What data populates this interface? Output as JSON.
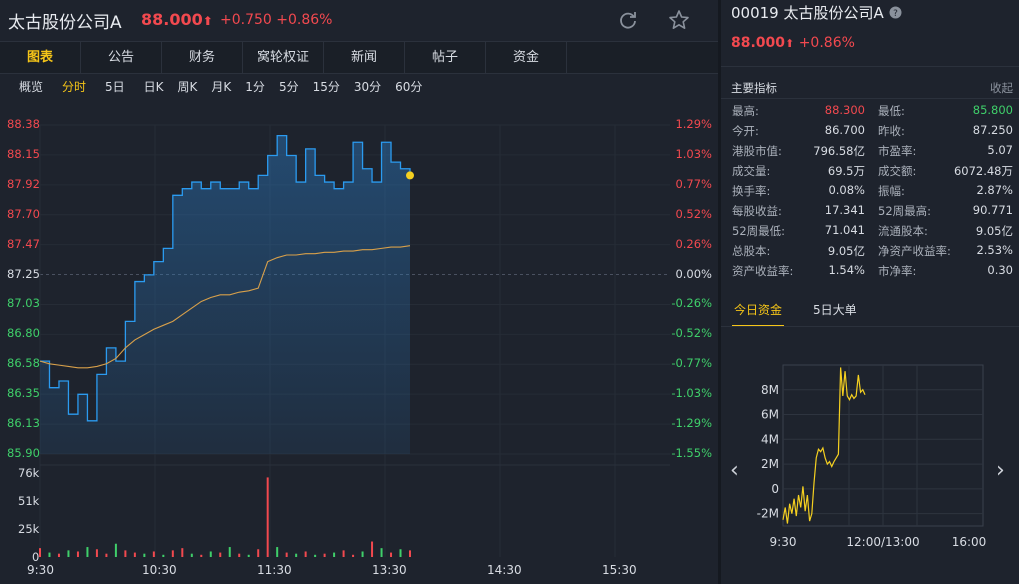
{
  "header": {
    "stock_name": "太古股份公司A",
    "price": "88.000",
    "up_arrow": "⬆",
    "change": "+0.750",
    "change_pct": "+0.86%",
    "refresh_icon": "refresh-icon",
    "star_icon": "star-icon"
  },
  "tabs": [
    {
      "label": "图表",
      "active": true
    },
    {
      "label": "公告"
    },
    {
      "label": "财务"
    },
    {
      "label": "窝轮权证"
    },
    {
      "label": "新闻"
    },
    {
      "label": "帖子"
    },
    {
      "label": "资金"
    }
  ],
  "periods": [
    "概览",
    "分时",
    "5日",
    "日K",
    "周K",
    "月K",
    "1分",
    "5分",
    "15分",
    "30分",
    "60分"
  ],
  "active_period": "分时",
  "colors": {
    "up": "#f2494f",
    "down": "#3fcf6a",
    "price_line": "#2b9bf0",
    "avg_line": "#d8a04a",
    "accent": "#f5c518"
  },
  "chart_data": {
    "type": "line",
    "price_ticks": [
      "88.38",
      "88.15",
      "87.92",
      "87.70",
      "87.47",
      "87.25",
      "87.03",
      "86.80",
      "86.58",
      "86.35",
      "86.13",
      "85.90"
    ],
    "pct_ticks": [
      "1.29%",
      "1.03%",
      "0.77%",
      "0.52%",
      "0.26%",
      "0.00%",
      "-0.26%",
      "-0.52%",
      "-0.77%",
      "-1.03%",
      "-1.29%",
      "-1.55%"
    ],
    "prev_close": 87.25,
    "ylim": [
      85.9,
      88.38
    ],
    "volume_ticks": [
      "76k",
      "51k",
      "25k",
      "0"
    ],
    "volume_max": 76000,
    "time_labels": [
      "9:30",
      "10:30",
      "11:30",
      "13:30",
      "14:30",
      "15:30"
    ],
    "price_series": {
      "name": "",
      "x": [
        "9:30",
        "9:35",
        "9:40",
        "9:45",
        "9:50",
        "9:55",
        "10:00",
        "10:05",
        "10:10",
        "10:15",
        "10:20",
        "10:25",
        "10:30",
        "10:35",
        "10:40",
        "10:45",
        "10:50",
        "10:55",
        "11:00",
        "11:05",
        "11:10",
        "11:15",
        "11:20",
        "11:25",
        "11:30",
        "11:35",
        "11:40",
        "11:45",
        "11:50",
        "11:55",
        "12:00",
        "13:00",
        "13:05",
        "13:10",
        "13:15",
        "13:20",
        "13:25",
        "13:30",
        "13:35",
        "13:40"
      ],
      "values": [
        86.6,
        86.4,
        86.45,
        86.2,
        86.35,
        86.15,
        86.5,
        86.7,
        86.6,
        86.9,
        87.2,
        87.25,
        87.35,
        87.45,
        87.85,
        87.9,
        87.95,
        87.9,
        87.95,
        87.9,
        87.9,
        87.95,
        87.9,
        88.0,
        88.15,
        88.3,
        88.15,
        87.95,
        88.2,
        88.0,
        87.95,
        87.9,
        87.95,
        88.25,
        88.05,
        87.95,
        88.25,
        88.1,
        88.05,
        88.0
      ]
    },
    "avg_series": {
      "name": "",
      "values": [
        86.6,
        86.58,
        86.57,
        86.56,
        86.55,
        86.55,
        86.56,
        86.58,
        86.62,
        86.7,
        86.76,
        86.8,
        86.84,
        86.87,
        86.9,
        86.95,
        87.0,
        87.05,
        87.08,
        87.1,
        87.1,
        87.12,
        87.13,
        87.15,
        87.35,
        87.38,
        87.4,
        87.4,
        87.41,
        87.41,
        87.42,
        87.42,
        87.43,
        87.43,
        87.44,
        87.44,
        87.45,
        87.46,
        87.46,
        87.47
      ]
    },
    "volume_values": [
      8000,
      4000,
      3000,
      6000,
      5000,
      9000,
      7000,
      3000,
      12000,
      6000,
      4000,
      3000,
      5000,
      2000,
      6000,
      8000,
      3000,
      2000,
      5000,
      4000,
      9000,
      3000,
      2000,
      7000,
      72000,
      9000,
      4000,
      3000,
      5000,
      2000,
      3000,
      4000,
      6000,
      2000,
      5000,
      14000,
      8000,
      4000,
      7000,
      6000
    ],
    "volume_up": [
      true,
      false,
      true,
      false,
      true,
      false,
      true,
      true,
      false,
      true,
      true,
      false,
      true,
      false,
      true,
      true,
      false,
      true,
      false,
      true,
      false,
      true,
      false,
      true,
      true,
      false,
      true,
      false,
      true,
      false,
      true,
      false,
      true,
      true,
      false,
      true,
      false,
      true,
      false,
      true
    ]
  },
  "right": {
    "title": "00019 太古股份公司A",
    "help_icon": "help-icon",
    "price": "88.000",
    "up_arrow": "⬆",
    "change_pct": "+0.86%",
    "section_title": "主要指标",
    "collapse": "收起",
    "metrics": [
      {
        "k1": "最高:",
        "v1": "88.300",
        "c1": "red",
        "k2": "最低:",
        "v2": "85.800",
        "c2": "green"
      },
      {
        "k1": "今开:",
        "v1": "86.700",
        "c1": "white",
        "k2": "昨收:",
        "v2": "87.250",
        "c2": "white"
      },
      {
        "k1": "港股市值:",
        "v1": "796.58亿",
        "c1": "white",
        "k2": "市盈率:",
        "v2": "5.07",
        "c2": "white"
      },
      {
        "k1": "成交量:",
        "v1": "69.5万",
        "c1": "white",
        "k2": "成交额:",
        "v2": "6072.48万",
        "c2": "white"
      },
      {
        "k1": "换手率:",
        "v1": "0.08%",
        "c1": "white",
        "k2": "振幅:",
        "v2": "2.87%",
        "c2": "white"
      },
      {
        "k1": "每股收益:",
        "v1": "17.341",
        "c1": "white",
        "k2": "52周最高:",
        "v2": "90.771",
        "c2": "white"
      },
      {
        "k1": "52周最低:",
        "v1": "71.041",
        "c1": "white",
        "k2": "流通股本:",
        "v2": "9.05亿",
        "c2": "white"
      },
      {
        "k1": "总股本:",
        "v1": "9.05亿",
        "c1": "white",
        "k2": "净资产收益率:",
        "v2": "2.53%",
        "c2": "white"
      },
      {
        "k1": "资产收益率:",
        "v1": "1.54%",
        "c1": "white",
        "k2": "市净率:",
        "v2": "0.30",
        "c2": "white"
      }
    ],
    "fund_tabs": [
      {
        "label": "今日资金",
        "active": true
      },
      {
        "label": "5日大单"
      }
    ],
    "mini_chart": {
      "type": "line",
      "y_ticks": [
        "8M",
        "6M",
        "4M",
        "2M",
        "0",
        "-2M"
      ],
      "ylim": [
        -3,
        10
      ],
      "x_labels": [
        "9:30",
        "12:00/13:00",
        "16:00"
      ],
      "values": [
        -2.5,
        -1.5,
        -2.8,
        -1.2,
        -2.0,
        -0.8,
        -2.2,
        -0.5,
        -1.5,
        0.2,
        -1.8,
        -0.5,
        -2.6,
        -2.0,
        0.5,
        2.5,
        3.2,
        3.0,
        3.3,
        2.5,
        2.0,
        2.2,
        1.8,
        2.2,
        2.5,
        2.8,
        9.8,
        7.5,
        9.5,
        7.5,
        7.2,
        7.6,
        7.3,
        7.5,
        9.2,
        7.8,
        8.0,
        7.6
      ]
    },
    "prev_icon": "chevron-left-icon",
    "next_icon": "chevron-right-icon"
  }
}
